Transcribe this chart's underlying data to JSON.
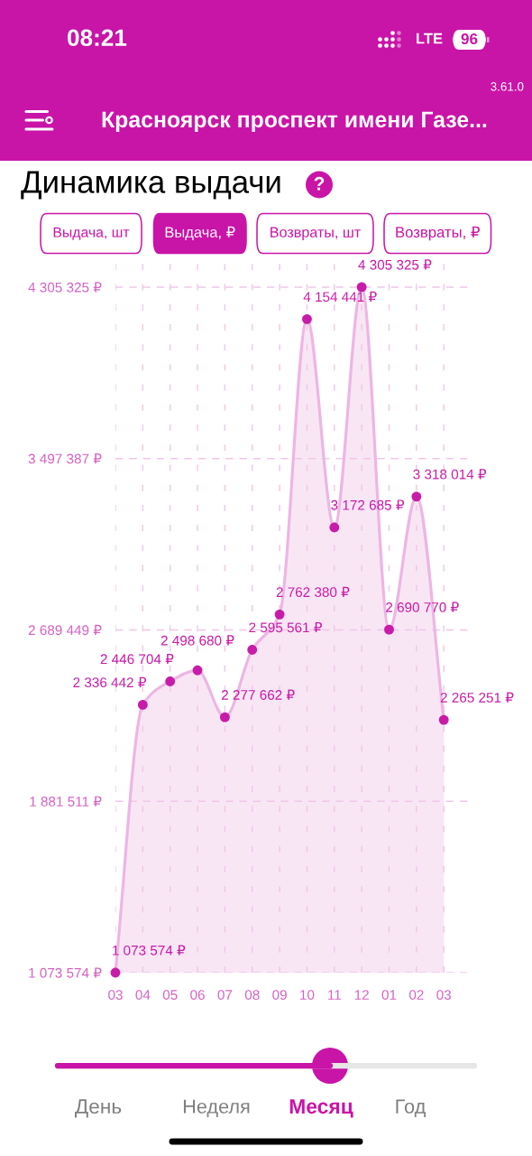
{
  "chart_data": {
    "type": "area",
    "title": "Динамика выдачи",
    "subtitle": "Красноярск проспект имени Газе...",
    "categories": [
      "03",
      "04",
      "05",
      "06",
      "07",
      "08",
      "09",
      "10",
      "11",
      "12",
      "01",
      "02",
      "03"
    ],
    "values": [
      1073574,
      2336442,
      2446704,
      2498680,
      2277662,
      2595561,
      2762380,
      4154441,
      3172685,
      4305325,
      2690770,
      3318014,
      2265251
    ],
    "value_labels": [
      "1 073 574 ₽",
      "2 336 442 ₽",
      "2 446 704 ₽",
      "2 498 680 ₽",
      "2 277 662 ₽",
      "2 595 561 ₽",
      "2 762 380 ₽",
      "4 154 441 ₽",
      "3 172 685 ₽",
      "4 305 325 ₽",
      "2 690 770 ₽",
      "3 318 014 ₽",
      "2 265 251 ₽"
    ],
    "color": "#c81ca8",
    "ylim": [
      1073574,
      4420000
    ],
    "yticks": [
      {
        "value": 1073574,
        "label": "1 073 574 ₽"
      },
      {
        "value": 1881511,
        "label": "1 881 511 ₽"
      },
      {
        "value": 2689449,
        "label": "2 689 449 ₽"
      },
      {
        "value": 3497387,
        "label": "3 497 387 ₽"
      },
      {
        "value": 4305325,
        "label": "4 305 325 ₽"
      }
    ],
    "grid": true,
    "marker": "circle",
    "line_style": "solid",
    "annotations": [
      "08:21",
      "LTE",
      "96",
      "3.61.0",
      "?",
      "Выдача, шт",
      "Выдача, ₽",
      "Возвраты, шт",
      "Возвраты, ₽",
      "День",
      "Неделя",
      "Месяц",
      "Год"
    ]
  }
}
